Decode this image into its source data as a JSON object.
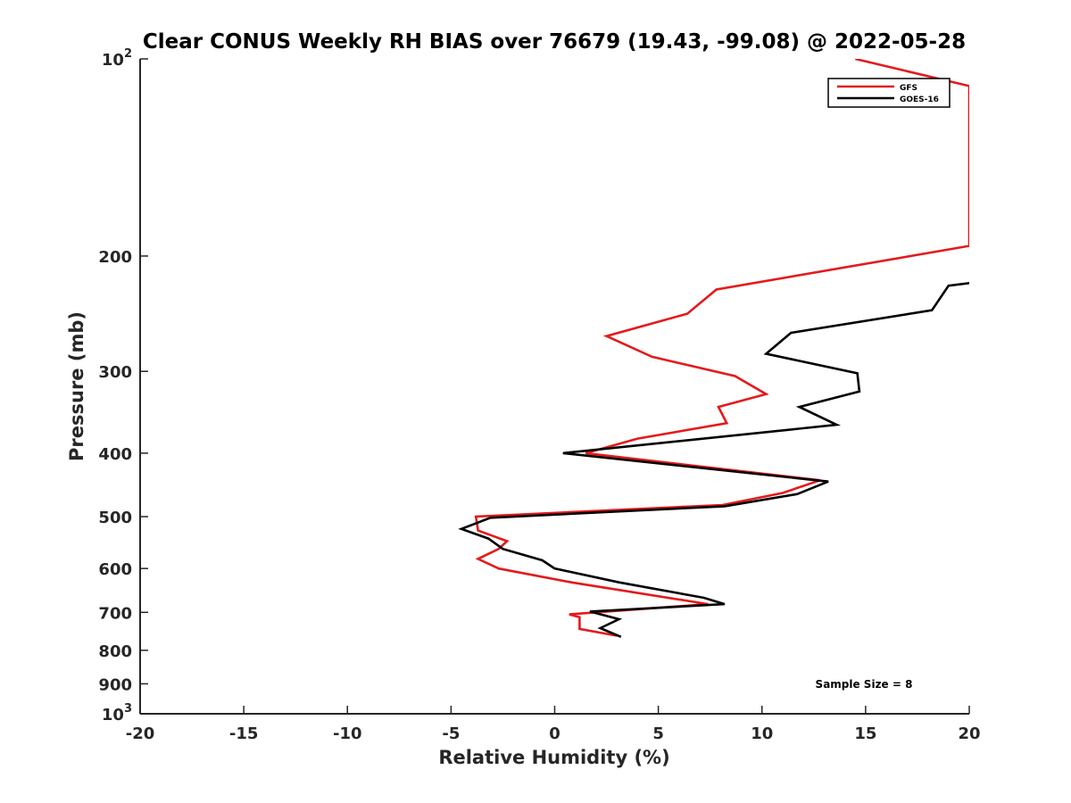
{
  "chart_data": {
    "type": "line",
    "title": "Clear CONUS Weekly RH BIAS over 76679 (19.43, -99.08) @ 2022-05-28",
    "xlabel": "Relative Humidity (%)",
    "ylabel": "Pressure (mb)",
    "xlim": [
      -20,
      20
    ],
    "ylim": [
      100,
      1000
    ],
    "y_scale": "log",
    "y_reversed": true,
    "grid": false,
    "legend_position": "top-right",
    "x_ticks": [
      "-20",
      "-15",
      "-10",
      "-5",
      "0",
      "5",
      "10",
      "15",
      "20"
    ],
    "y_ticks": [
      {
        "value": 100,
        "label": "10",
        "sup": "2"
      },
      {
        "value": 200,
        "label": "200"
      },
      {
        "value": 300,
        "label": "300"
      },
      {
        "value": 400,
        "label": "400"
      },
      {
        "value": 500,
        "label": "500"
      },
      {
        "value": 600,
        "label": "600"
      },
      {
        "value": 700,
        "label": "700"
      },
      {
        "value": 800,
        "label": "800"
      },
      {
        "value": 900,
        "label": "900"
      },
      {
        "value": 1000,
        "label": "10",
        "sup": "3"
      }
    ],
    "series": [
      {
        "name": "GFS",
        "color": "#e41a1c",
        "points": [
          [
            14.5,
            100
          ],
          [
            20.0,
            110
          ],
          [
            20.0,
            193
          ],
          [
            7.8,
            225
          ],
          [
            6.4,
            245
          ],
          [
            2.5,
            265
          ],
          [
            4.7,
            285
          ],
          [
            8.7,
            305
          ],
          [
            10.2,
            325
          ],
          [
            7.9,
            340
          ],
          [
            8.3,
            360
          ],
          [
            4.0,
            380
          ],
          [
            1.5,
            400
          ],
          [
            12.8,
            440
          ],
          [
            11.0,
            460
          ],
          [
            8.1,
            480
          ],
          [
            -3.8,
            500
          ],
          [
            -3.7,
            525
          ],
          [
            -2.3,
            545
          ],
          [
            -2.7,
            560
          ],
          [
            -3.7,
            580
          ],
          [
            -2.7,
            600
          ],
          [
            0.8,
            630
          ],
          [
            7.4,
            680
          ],
          [
            0.7,
            705
          ],
          [
            1.2,
            712
          ],
          [
            1.2,
            742
          ],
          [
            3.0,
            760
          ]
        ]
      },
      {
        "name": "GOES-16",
        "color": "#000000",
        "points": [
          [
            20.0,
            220
          ],
          [
            19.0,
            222
          ],
          [
            18.2,
            242
          ],
          [
            11.4,
            262
          ],
          [
            10.2,
            282
          ],
          [
            14.6,
            302
          ],
          [
            14.7,
            322
          ],
          [
            11.8,
            340
          ],
          [
            13.6,
            362
          ],
          [
            0.4,
            400
          ],
          [
            13.2,
            442
          ],
          [
            11.7,
            462
          ],
          [
            8.2,
            482
          ],
          [
            -3.1,
            502
          ],
          [
            -4.5,
            522
          ],
          [
            -3.2,
            540
          ],
          [
            -2.5,
            560
          ],
          [
            -0.6,
            583
          ],
          [
            0.0,
            600
          ],
          [
            3.1,
            630
          ],
          [
            7.2,
            665
          ],
          [
            8.2,
            680
          ],
          [
            1.7,
            698
          ],
          [
            3.1,
            717
          ],
          [
            2.2,
            740
          ],
          [
            3.2,
            763
          ]
        ]
      }
    ],
    "annotations": [
      {
        "text": "Sample Size = 8"
      }
    ]
  }
}
